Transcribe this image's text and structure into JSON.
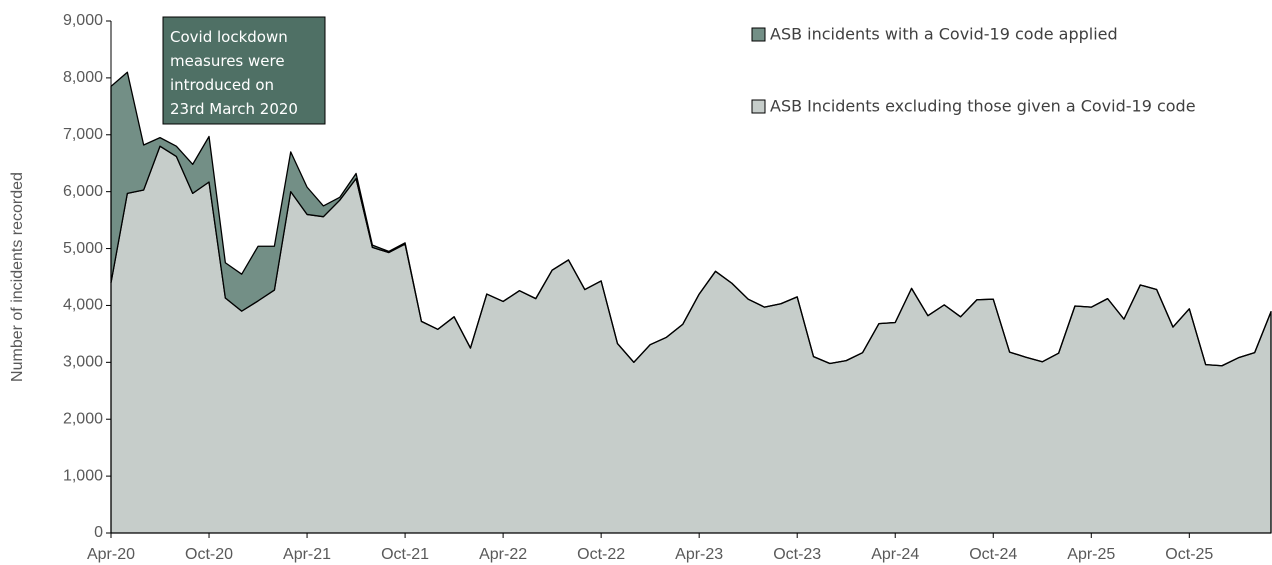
{
  "chart_data": {
    "type": "stacked_area",
    "y_label": "Number of incidents recorded",
    "categories": [
      "Apr-20",
      null,
      null,
      null,
      null,
      null,
      "Oct-20",
      null,
      null,
      null,
      null,
      null,
      "Apr-21",
      null,
      null,
      null,
      null,
      null,
      "Oct-21",
      null,
      null,
      null,
      null,
      null,
      "Apr-22",
      null,
      null,
      null,
      null,
      null,
      "Oct-22",
      null,
      null,
      null,
      null,
      null,
      "Apr-23",
      null,
      null,
      null,
      null,
      null,
      "Oct-23",
      null,
      null,
      null,
      null,
      null,
      "Apr-24",
      null,
      null,
      null,
      null,
      null,
      "Oct-24",
      null,
      null,
      null,
      null,
      null,
      "Apr-25",
      null,
      null,
      null,
      null,
      null,
      "Oct-25",
      null,
      null,
      null,
      null,
      null
    ],
    "series": [
      {
        "name": "ASB Incidents excluding those given a Covid-19 code",
        "color": "#c6cdca",
        "values": [
          4400,
          5970,
          6030,
          6800,
          6620,
          5970,
          6170,
          4130,
          3900,
          4080,
          4270,
          6000,
          5600,
          5560,
          5850,
          6230,
          5020,
          4930,
          5080,
          3720,
          3580,
          3800,
          3250,
          4200,
          4070,
          4260,
          4120,
          4620,
          4800,
          4280,
          4430,
          3330,
          3000,
          3310,
          3440,
          3670,
          4200,
          4600,
          4390,
          4110,
          3970,
          4030,
          4150,
          3100,
          2980,
          3030,
          3170,
          3680,
          3700,
          4300,
          3820,
          4010,
          3800,
          4100,
          4110,
          3180,
          3090,
          3010,
          3160,
          3990,
          3970,
          4120,
          3760,
          4360,
          4280,
          3620,
          3940,
          2960,
          2940,
          3080,
          3170,
          3890
        ]
      },
      {
        "name": "ASB incidents with a Covid-19 code applied",
        "color": "#738f86",
        "values": [
          3450,
          2130,
          790,
          150,
          180,
          510,
          800,
          620,
          650,
          960,
          770,
          700,
          480,
          190,
          50,
          90,
          40,
          20,
          20,
          0,
          0,
          0,
          0,
          0,
          0,
          0,
          0,
          0,
          0,
          0,
          0,
          0,
          0,
          0,
          0,
          0,
          0,
          0,
          0,
          0,
          0,
          0,
          0,
          0,
          0,
          0,
          0,
          0,
          0,
          0,
          0,
          0,
          0,
          0,
          0,
          0,
          0,
          0,
          0,
          0,
          0,
          0,
          0,
          0,
          0,
          0,
          0,
          0,
          0,
          0,
          0,
          0
        ]
      }
    ],
    "ylim": [
      0,
      9000
    ],
    "yticks": [
      0,
      {
        "value": 1000,
        "label": "1,000"
      },
      {
        "value": 2000,
        "label": "2,000"
      },
      {
        "value": 3000,
        "label": "3,000"
      },
      {
        "value": 4000,
        "label": "4,000"
      },
      {
        "value": 5000,
        "label": "5,000"
      },
      {
        "value": 6000,
        "label": "6,000"
      },
      {
        "value": 7000,
        "label": "7,000"
      },
      {
        "value": 8000,
        "label": "8,000"
      },
      {
        "value": 9000,
        "label": "9,000"
      }
    ],
    "annotation": {
      "lines": [
        "Covid lockdown",
        "measures were",
        "introduced on",
        "23rd March 2020"
      ],
      "color": "#4f7065"
    },
    "legend": "top-right"
  }
}
